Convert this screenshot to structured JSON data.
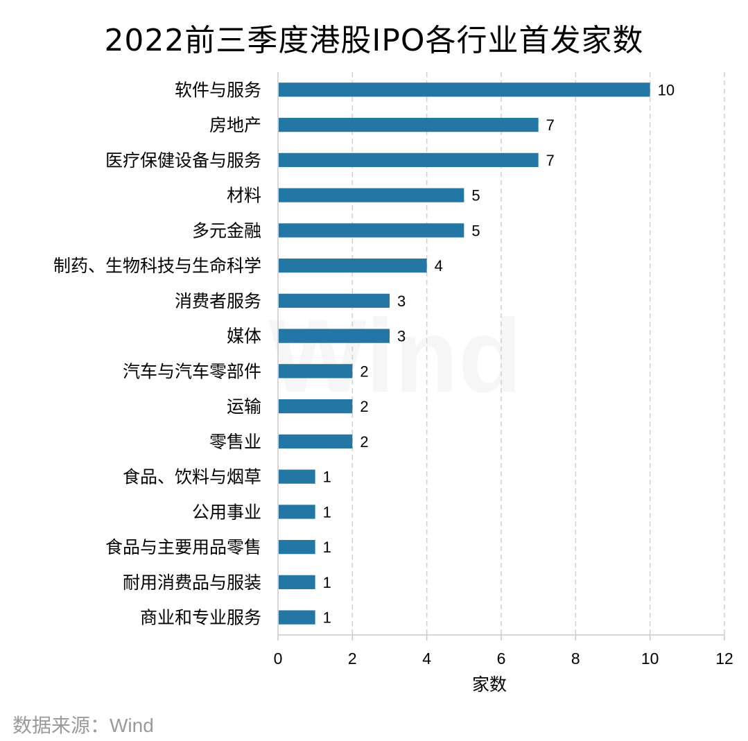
{
  "chart_data": {
    "type": "bar",
    "orientation": "horizontal",
    "title": "2022前三季度港股IPO各行业首发家数",
    "categories": [
      "软件与服务",
      "房地产",
      "医疗保健设备与服务",
      "材料",
      "多元金融",
      "制药、生物科技与生命科学",
      "消费者服务",
      "媒体",
      "汽车与汽车零部件",
      "运输",
      "零售业",
      "食品、饮料与烟草",
      "公用事业",
      "食品与主要用品零售",
      "耐用消费品与服装",
      "商业和专业服务"
    ],
    "values": [
      10,
      7,
      7,
      5,
      5,
      4,
      3,
      3,
      2,
      2,
      2,
      1,
      1,
      1,
      1,
      1
    ],
    "xlabel": "家数",
    "ylabel": "",
    "xlim": [
      0,
      12
    ],
    "xticks": [
      0,
      2,
      4,
      6,
      8,
      10,
      12
    ],
    "grid": "vertical dashed",
    "bar_color": "#2477A4",
    "grid_color": "#d0d0d0",
    "axis_color": "#c8c8c8"
  },
  "source": "数据来源：Wind",
  "watermark": "Wind"
}
